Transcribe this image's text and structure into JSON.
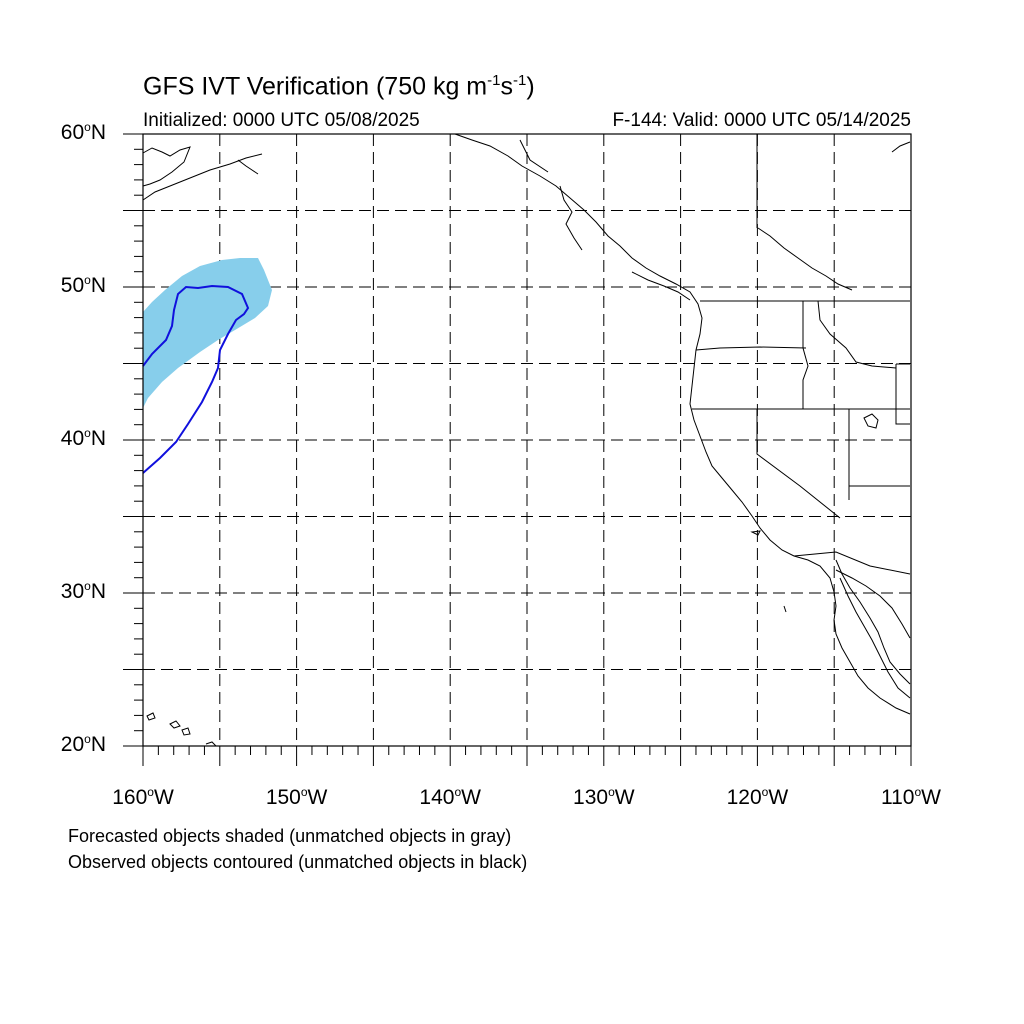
{
  "title": {
    "text": "GFS IVT Verification (750 kg m",
    "exp1": "-1",
    "mid": "s",
    "exp2": "-1",
    "end": ")"
  },
  "initialized": "Initialized: 0000 UTC 05/08/2025",
  "valid": "F-144: Valid: 0000 UTC 05/14/2025",
  "lat_labels": [
    "60",
    "50",
    "40",
    "30",
    "20"
  ],
  "lon_labels": [
    "160",
    "150",
    "140",
    "130",
    "120",
    "110"
  ],
  "degree": "o",
  "lat_suffix": "N",
  "lon_suffix": "W",
  "legend": [
    "Forecasted objects shaded (unmatched objects in gray)",
    "Observed objects contoured (unmatched objects in black)"
  ],
  "map_extent": {
    "lon_min": -160,
    "lon_max": -110,
    "lat_min": 20,
    "lat_max": 60
  },
  "colors": {
    "forecast_fill": "#87ceeb",
    "observed_contour": "#1010dd",
    "coast": "#000000"
  }
}
